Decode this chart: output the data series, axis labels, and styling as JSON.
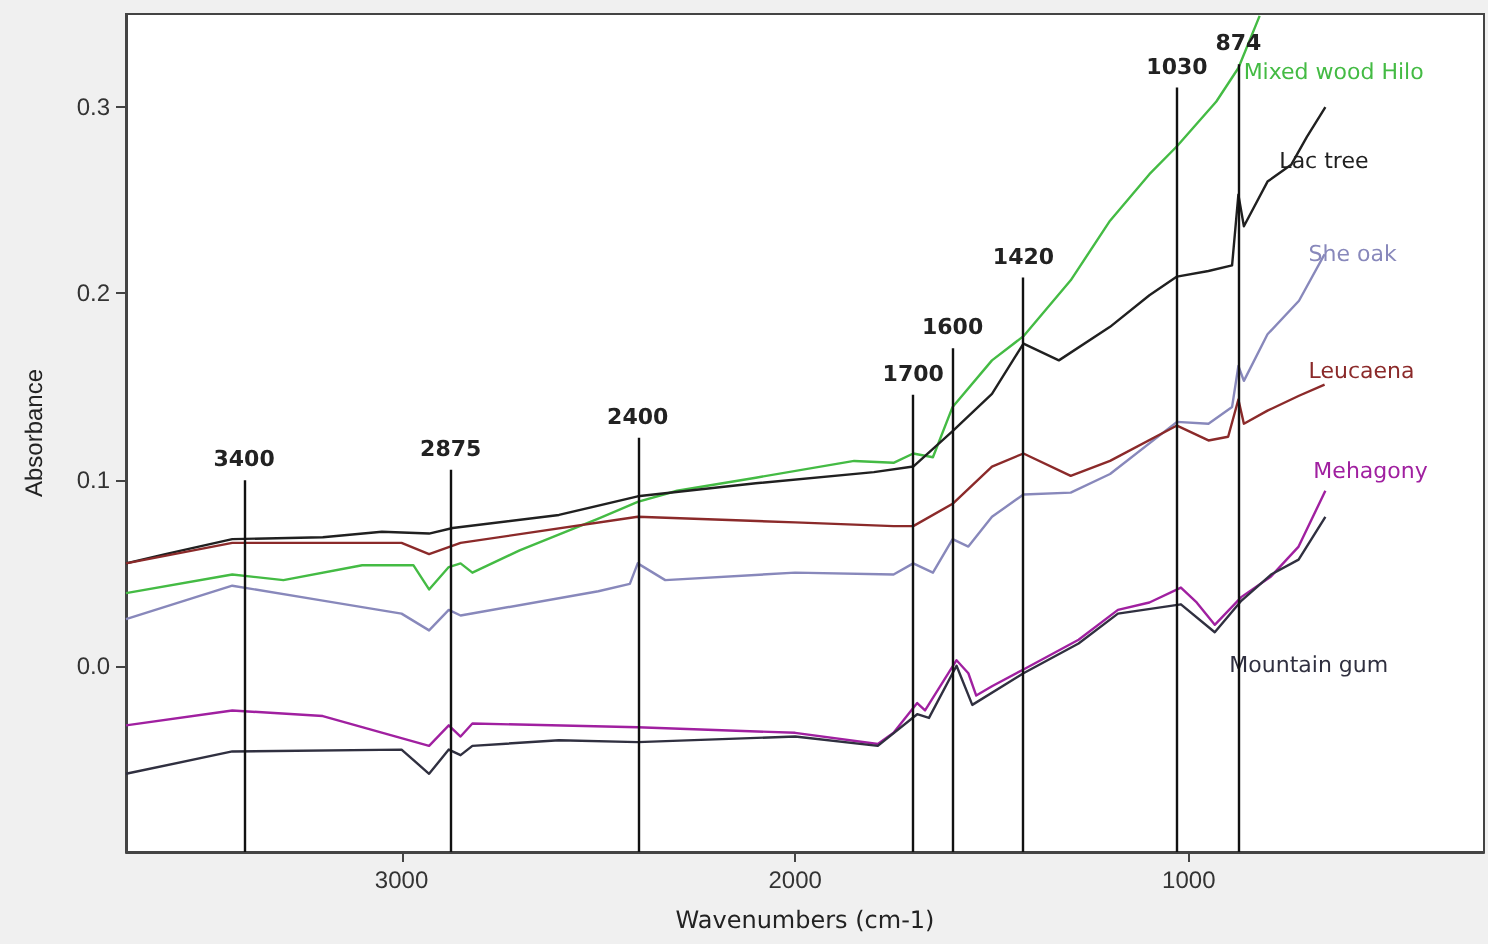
{
  "chart_data": {
    "type": "line",
    "xlabel": "Wavenumbers (cm-1)",
    "ylabel": "Absorbance",
    "xlim": [
      3700,
      250
    ],
    "xticks": [
      3000,
      2000,
      1000
    ],
    "ylim": [
      -0.1,
      0.35
    ],
    "yticks": [
      {
        "value": 0,
        "label": "0.0"
      },
      0.1,
      0.2,
      0.3
    ],
    "grid": false,
    "series": [
      {
        "name": "Mixed wood Hilo",
        "color": "#44bb44",
        "x": [
          3700,
          3430,
          3300,
          3100,
          2970,
          2930,
          2880,
          2850,
          2820,
          2700,
          2500,
          2400,
          2300,
          2100,
          1850,
          1750,
          1700,
          1650,
          1600,
          1500,
          1420,
          1300,
          1200,
          1100,
          1030,
          930,
          874,
          820
        ],
        "values": [
          0.039,
          0.049,
          0.046,
          0.054,
          0.054,
          0.041,
          0.053,
          0.055,
          0.05,
          0.062,
          0.079,
          0.088,
          0.094,
          0.101,
          0.11,
          0.109,
          0.114,
          0.112,
          0.139,
          0.164,
          0.177,
          0.207,
          0.239,
          0.264,
          0.279,
          0.303,
          0.321,
          0.349
        ]
      },
      {
        "name": "Lac tree",
        "color": "#202020",
        "x": [
          3700,
          3600,
          3430,
          3200,
          3050,
          2930,
          2870,
          2600,
          2400,
          2100,
          1800,
          1700,
          1600,
          1500,
          1420,
          1330,
          1200,
          1100,
          1030,
          950,
          890,
          874,
          860,
          800,
          740,
          700,
          653
        ],
        "values": [
          0.055,
          0.06,
          0.068,
          0.069,
          0.072,
          0.071,
          0.074,
          0.081,
          0.091,
          0.098,
          0.104,
          0.107,
          0.126,
          0.146,
          0.173,
          0.164,
          0.182,
          0.199,
          0.209,
          0.212,
          0.215,
          0.253,
          0.236,
          0.26,
          0.269,
          0.284,
          0.3
        ]
      },
      {
        "name": "She oak",
        "color": "#8888bb",
        "x": [
          3700,
          3430,
          3200,
          3000,
          2930,
          2880,
          2850,
          2500,
          2420,
          2400,
          2330,
          2000,
          1750,
          1700,
          1650,
          1600,
          1560,
          1500,
          1420,
          1300,
          1200,
          1030,
          950,
          890,
          874,
          860,
          800,
          720,
          655
        ],
        "values": [
          0.025,
          0.043,
          0.035,
          0.028,
          0.019,
          0.03,
          0.027,
          0.04,
          0.044,
          0.055,
          0.046,
          0.05,
          0.049,
          0.055,
          0.05,
          0.068,
          0.064,
          0.08,
          0.092,
          0.093,
          0.103,
          0.131,
          0.13,
          0.139,
          0.161,
          0.153,
          0.178,
          0.196,
          0.221
        ]
      },
      {
        "name": "Leucaena",
        "color": "#8b2a2a",
        "x": [
          3700,
          3430,
          3000,
          2930,
          2850,
          2400,
          2000,
          1750,
          1700,
          1600,
          1500,
          1420,
          1300,
          1200,
          1030,
          950,
          900,
          874,
          860,
          800,
          720,
          655
        ],
        "values": [
          0.055,
          0.066,
          0.066,
          0.06,
          0.066,
          0.08,
          0.077,
          0.075,
          0.075,
          0.087,
          0.107,
          0.114,
          0.102,
          0.11,
          0.129,
          0.121,
          0.123,
          0.143,
          0.13,
          0.137,
          0.145,
          0.151
        ]
      },
      {
        "name": "Mehagony",
        "color": "#a020a0",
        "x": [
          3700,
          3430,
          3200,
          2930,
          2880,
          2850,
          2820,
          2400,
          2000,
          1790,
          1750,
          1690,
          1670,
          1590,
          1560,
          1540,
          1500,
          1420,
          1280,
          1180,
          1100,
          1020,
          980,
          934,
          866,
          791,
          721,
          653
        ],
        "values": [
          -0.032,
          -0.024,
          -0.027,
          -0.043,
          -0.032,
          -0.038,
          -0.031,
          -0.033,
          -0.036,
          -0.042,
          -0.036,
          -0.02,
          -0.024,
          0.003,
          -0.004,
          -0.016,
          -0.011,
          -0.002,
          0.014,
          0.03,
          0.034,
          0.042,
          0.034,
          0.022,
          0.037,
          0.048,
          0.064,
          0.094
        ]
      },
      {
        "name": "Mountain gum",
        "color": "#303040",
        "x": [
          3700,
          3430,
          3000,
          2930,
          2880,
          2850,
          2820,
          2600,
          2400,
          2000,
          1790,
          1690,
          1660,
          1590,
          1550,
          1420,
          1280,
          1180,
          1020,
          934,
          866,
          791,
          721,
          653
        ],
        "values": [
          -0.058,
          -0.046,
          -0.045,
          -0.058,
          -0.045,
          -0.048,
          -0.043,
          -0.04,
          -0.041,
          -0.038,
          -0.043,
          -0.026,
          -0.028,
          0.0,
          -0.021,
          -0.004,
          0.012,
          0.028,
          0.033,
          0.018,
          0.035,
          0.049,
          0.057,
          0.08
        ]
      }
    ],
    "ref_lines": [
      {
        "axis": "x",
        "value": 3400,
        "label": "3400"
      },
      {
        "axis": "x",
        "value": 2875,
        "label": "2875"
      },
      {
        "axis": "x",
        "value": 2400,
        "label": "2400"
      },
      {
        "axis": "x",
        "value": 1700,
        "label": "1700"
      },
      {
        "axis": "x",
        "value": 1600,
        "label": "1600"
      },
      {
        "axis": "x",
        "value": 1420,
        "label": "1420"
      },
      {
        "axis": "x",
        "value": 1030,
        "label": "1030"
      },
      {
        "axis": "x",
        "value": 874,
        "label": "874"
      }
    ]
  }
}
